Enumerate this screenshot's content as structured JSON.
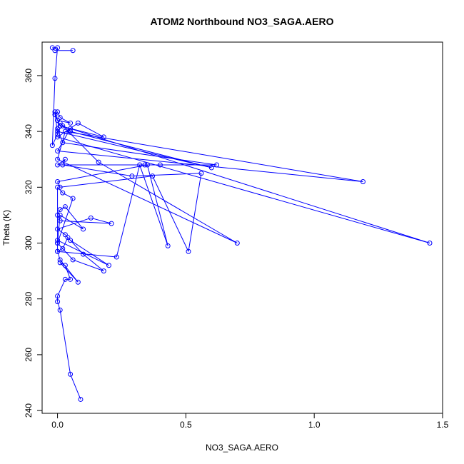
{
  "chart_data": {
    "type": "scatter",
    "connected": true,
    "title": "ATOM2 Northbound NO3_SAGA.AERO",
    "xlabel": "NO3_SAGA.AERO",
    "ylabel": "Theta (K)",
    "xlim": [
      -0.06,
      1.5
    ],
    "ylim": [
      239,
      372
    ],
    "xticks": [
      0.0,
      0.5,
      1.0,
      1.5
    ],
    "xtick_labels": [
      "0.0",
      "0.5",
      "1.0",
      "1.5"
    ],
    "yticks": [
      240,
      260,
      280,
      300,
      320,
      340,
      360
    ],
    "ytick_labels": [
      "240",
      "260",
      "280",
      "300",
      "320",
      "340",
      "360"
    ],
    "grid": false,
    "series": [
      {
        "color": "#0000ff",
        "marker": "open-circle",
        "x": [
          0.09,
          0.05,
          0.01,
          0.0,
          0.0,
          0.03,
          0.05,
          0.03,
          0.01,
          0.08,
          0.01,
          0.0,
          0.02,
          0.04,
          0.1,
          0.18,
          0.06,
          0.0,
          0.0,
          0.2,
          0.05,
          0.03,
          0.0,
          0.13,
          0.21,
          0.01,
          0.0,
          0.01,
          0.03,
          0.1,
          0.01,
          0.0,
          0.06,
          0.02,
          0.0,
          0.0,
          0.23,
          0.32,
          0.43,
          0.35,
          0.0,
          0.01,
          0.37,
          0.51,
          0.56,
          0.29,
          0.02,
          0.03,
          0.0,
          0.34,
          0.4,
          0.62,
          0.02,
          0.0,
          0.01,
          0.05,
          0.6,
          0.0,
          0.02,
          0.16,
          0.7,
          0.0,
          0.03,
          1.19,
          0.0,
          0.05,
          1.45,
          0.0,
          0.08,
          0.18,
          0.01,
          0.0,
          0.05,
          0.01,
          0.0,
          -0.01,
          0.0,
          -0.01,
          0.0,
          -0.02,
          -0.01,
          0.0,
          -0.02,
          -0.01,
          0.06
        ],
        "y": [
          244,
          253,
          276,
          279,
          281,
          287,
          287,
          292,
          293,
          286,
          294,
          297,
          298,
          302,
          296,
          290,
          294,
          300,
          301,
          292,
          301,
          303,
          305,
          309,
          307,
          308,
          310,
          312,
          313,
          305,
          310,
          300,
          316,
          318,
          320,
          297,
          295,
          328,
          299,
          328,
          322,
          320,
          324,
          297,
          325,
          324,
          328,
          330,
          328,
          328,
          328,
          328,
          336,
          341,
          343,
          340,
          327,
          340,
          342,
          329,
          300,
          330,
          340,
          322,
          333,
          341,
          300,
          338,
          343,
          338,
          342,
          344,
          343,
          345,
          347,
          346,
          344,
          347,
          339,
          335,
          359,
          370,
          370,
          369,
          369
        ]
      }
    ]
  }
}
